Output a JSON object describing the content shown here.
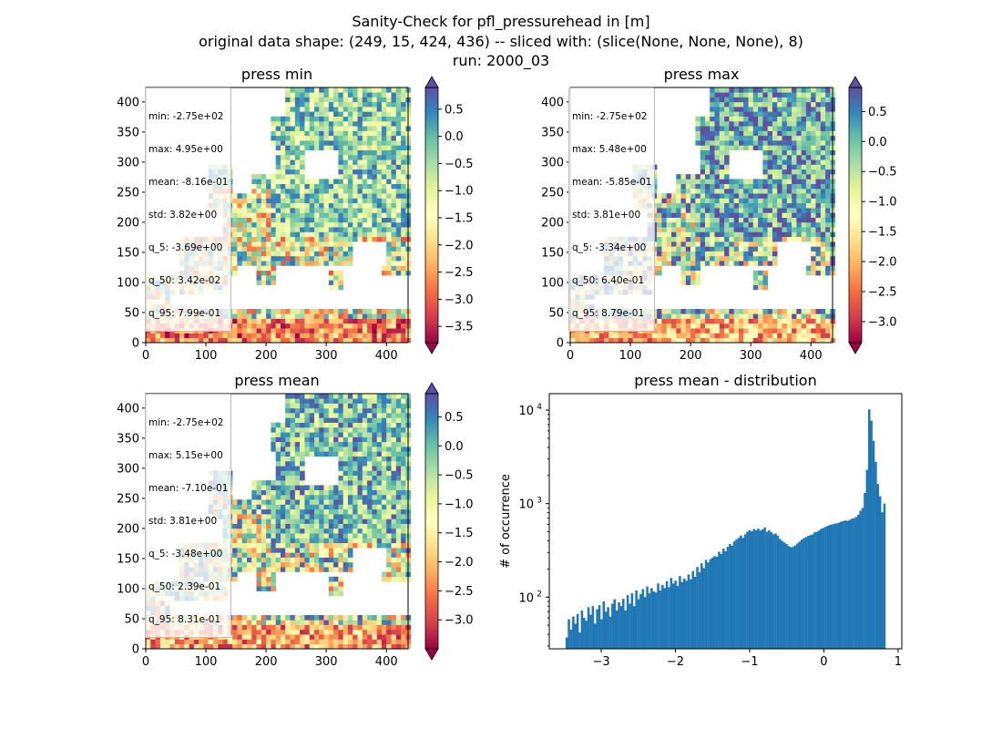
{
  "figure": {
    "title_lines": [
      "Sanity-Check for pfl_pressurehead in [m]",
      "original data shape: (249, 15, 424, 436) -- sliced with: (slice(None, None, None), 8)",
      "run: 2000_03"
    ]
  },
  "colors": {
    "histogram_bar": "#1f77b4",
    "colormap": "Spectral",
    "land_mask_bg": "#ffffff"
  },
  "chart_data": [
    {
      "type": "heatmap",
      "title": "press min",
      "colormap": "Spectral",
      "xlim": [
        0,
        436
      ],
      "ylim": [
        0,
        424
      ],
      "xticks": [
        0,
        100,
        200,
        300,
        400
      ],
      "yticks": [
        0,
        50,
        100,
        150,
        200,
        250,
        300,
        350,
        400
      ],
      "colorbar": {
        "min": -3.8,
        "max": 0.9,
        "extend": "both",
        "ticks": [
          0.5,
          0.0,
          -0.5,
          -1.0,
          -1.5,
          -2.0,
          -2.5,
          -3.0,
          -3.5
        ],
        "tick_labels": [
          "0.5",
          "0.0",
          "−0.5",
          "−1.0",
          "−1.5",
          "−2.0",
          "−2.5",
          "−3.0",
          "−3.5"
        ]
      },
      "stats": [
        "min: -2.75e+02",
        "max: 4.95e+00",
        "mean: -8.16e-01",
        "std: 3.82e+00",
        "q_5: -3.69e+00",
        "q_50: 3.42e-02",
        "q_95: 7.99e-01"
      ]
    },
    {
      "type": "heatmap",
      "title": "press max",
      "colormap": "Spectral",
      "xlim": [
        0,
        436
      ],
      "ylim": [
        0,
        424
      ],
      "xticks": [
        0,
        100,
        200,
        300,
        400
      ],
      "yticks": [
        0,
        50,
        100,
        150,
        200,
        250,
        300,
        350,
        400
      ],
      "colorbar": {
        "min": -3.35,
        "max": 0.9,
        "extend": "both",
        "ticks": [
          0.5,
          0.0,
          -0.5,
          -1.0,
          -1.5,
          -2.0,
          -2.5,
          -3.0
        ],
        "tick_labels": [
          "0.5",
          "0.0",
          "−0.5",
          "−1.0",
          "−1.5",
          "−2.0",
          "−2.5",
          "−3.0"
        ]
      },
      "stats": [
        "min: -2.75e+02",
        "max: 5.48e+00",
        "mean: -5.85e-01",
        "std: 3.81e+00",
        "q_5: -3.34e+00",
        "q_50: 6.40e-01",
        "q_95: 8.79e-01"
      ]
    },
    {
      "type": "heatmap",
      "title": "press mean",
      "colormap": "Spectral",
      "xlim": [
        0,
        436
      ],
      "ylim": [
        0,
        424
      ],
      "xticks": [
        0,
        100,
        200,
        300,
        400
      ],
      "yticks": [
        0,
        50,
        100,
        150,
        200,
        250,
        300,
        350,
        400
      ],
      "colorbar": {
        "min": -3.5,
        "max": 0.9,
        "extend": "both",
        "ticks": [
          0.5,
          0.0,
          -0.5,
          -1.0,
          -1.5,
          -2.0,
          -2.5,
          -3.0
        ],
        "tick_labels": [
          "0.5",
          "0.0",
          "−0.5",
          "−1.0",
          "−1.5",
          "−2.0",
          "−2.5",
          "−3.0"
        ]
      },
      "stats": [
        "min: -2.75e+02",
        "max: 5.15e+00",
        "mean: -7.10e-01",
        "std: 3.81e+00",
        "q_5: -3.48e+00",
        "q_50: 2.39e-01",
        "q_95: 8.31e-01"
      ]
    },
    {
      "type": "bar",
      "title": "press mean - distribution",
      "xlabel": "",
      "ylabel": "# of occurrence",
      "yscale": "log",
      "xlim": [
        -3.7,
        1.05
      ],
      "ylim": [
        28,
        15000
      ],
      "xticks": [
        -3,
        -2,
        -1,
        0,
        1
      ],
      "xtick_labels": [
        "−3",
        "−2",
        "−1",
        "0",
        "1"
      ],
      "yticks": [
        100,
        1000,
        10000
      ],
      "ytick_labels": [
        "10",
        "10",
        "10"
      ],
      "ytick_exponents": [
        "2",
        "3",
        "4"
      ],
      "bin_range": [
        -3.48,
        0.83
      ],
      "values": [
        37,
        58,
        45,
        62,
        52,
        66,
        42,
        72,
        60,
        56,
        78,
        65,
        80,
        52,
        74,
        82,
        58,
        90,
        70,
        78,
        62,
        85,
        95,
        72,
        88,
        80,
        96,
        72,
        105,
        85,
        110,
        80,
        118,
        95,
        108,
        122,
        100,
        130,
        110,
        125,
        115,
        112,
        140,
        118,
        135,
        125,
        148,
        128,
        160,
        140,
        150,
        132,
        168,
        145,
        158,
        150,
        175,
        155,
        190,
        165,
        210,
        185,
        230,
        205,
        250,
        235,
        255,
        265,
        275,
        270,
        305,
        290,
        330,
        310,
        345,
        370,
        355,
        395,
        415,
        430,
        455,
        430,
        470,
        500,
        520,
        505,
        535,
        520,
        540,
        515,
        530,
        555,
        500,
        520,
        495,
        470,
        480,
        455,
        420,
        400,
        385,
        370,
        352,
        342,
        345,
        358,
        375,
        392,
        412,
        428,
        438,
        452,
        460,
        470,
        495,
        500,
        515,
        540,
        550,
        565,
        580,
        590,
        600,
        610,
        615,
        625,
        640,
        650,
        660,
        655,
        670,
        690,
        700,
        720,
        760,
        840,
        900,
        1300,
        2300,
        10200,
        7700,
        4700,
        2800,
        1620,
        1200,
        810,
        1000
      ]
    }
  ]
}
